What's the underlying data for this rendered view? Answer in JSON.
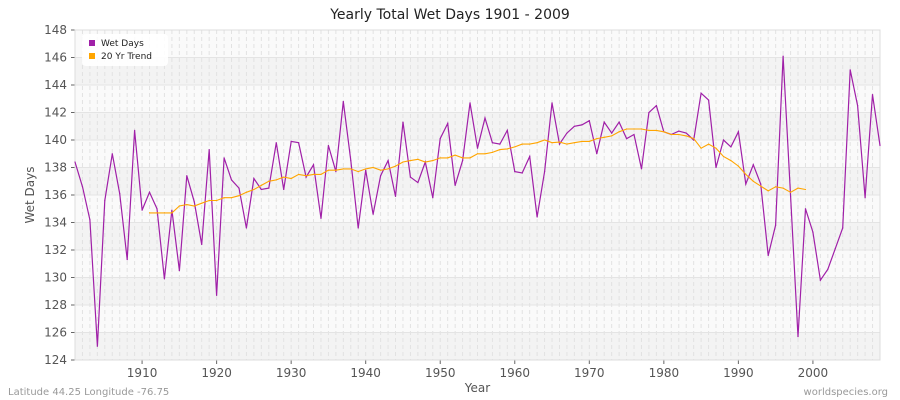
{
  "chart_data": {
    "type": "line",
    "title": "Yearly Total Wet Days 1901 - 2009",
    "xlabel": "Year",
    "ylabel": "Wet Days",
    "xlim": [
      1901,
      2009
    ],
    "ylim": [
      124,
      148
    ],
    "yticks": [
      124,
      126,
      128,
      130,
      132,
      134,
      136,
      138,
      140,
      142,
      144,
      146,
      148
    ],
    "xticks": [
      1910,
      1920,
      1930,
      1940,
      1950,
      1960,
      1970,
      1980,
      1990,
      2000
    ],
    "grid": true,
    "legend_position": "top-left",
    "series": [
      {
        "name": "Wet Days",
        "color": "#a020a8",
        "x_start": 1901,
        "values": [
          138.4,
          136.6,
          134.2,
          125.0,
          135.6,
          139.0,
          136.1,
          131.3,
          140.7,
          134.9,
          136.2,
          135.0,
          129.9,
          134.9,
          130.5,
          137.4,
          135.5,
          132.4,
          139.3,
          128.7,
          138.7,
          137.1,
          136.5,
          133.6,
          137.2,
          136.4,
          136.5,
          139.8,
          136.4,
          139.9,
          139.8,
          137.3,
          138.2,
          134.3,
          139.6,
          137.7,
          142.8,
          138.5,
          133.6,
          137.8,
          134.6,
          137.4,
          138.5,
          135.9,
          141.3,
          137.3,
          136.9,
          138.4,
          135.8,
          140.1,
          141.2,
          136.7,
          138.5,
          142.7,
          139.4,
          141.6,
          139.8,
          139.7,
          140.7,
          137.7,
          137.6,
          138.8,
          134.4,
          137.7,
          142.7,
          139.7,
          140.5,
          141.0,
          141.1,
          141.4,
          139.0,
          141.3,
          140.5,
          141.3,
          140.1,
          140.4,
          137.9,
          142.0,
          142.5,
          140.6,
          140.4,
          140.65,
          140.5,
          140.0,
          143.4,
          142.9,
          138.0,
          140.0,
          139.5,
          140.6,
          136.8,
          138.2,
          136.8,
          131.6,
          133.8,
          146.1,
          135.9,
          125.7,
          135.0,
          133.3,
          129.8,
          130.6,
          132.1,
          133.6,
          145.1,
          142.5,
          135.8,
          143.3,
          139.6
        ]
      },
      {
        "name": "20 Yr Trend",
        "color": "#ffa500",
        "x_start": 1911,
        "values": [
          134.7,
          134.7,
          134.7,
          134.7,
          135.2,
          135.3,
          135.2,
          135.4,
          135.6,
          135.6,
          135.8,
          135.8,
          135.95,
          136.2,
          136.4,
          136.7,
          137.0,
          137.1,
          137.3,
          137.2,
          137.5,
          137.4,
          137.5,
          137.5,
          137.8,
          137.8,
          137.9,
          137.9,
          137.7,
          137.9,
          138.0,
          137.8,
          137.9,
          138.1,
          138.4,
          138.5,
          138.6,
          138.4,
          138.5,
          138.7,
          138.7,
          138.9,
          138.7,
          138.7,
          139.0,
          139.0,
          139.1,
          139.3,
          139.35,
          139.5,
          139.7,
          139.7,
          139.8,
          140.0,
          139.8,
          139.85,
          139.7,
          139.8,
          139.9,
          139.9,
          140.1,
          140.2,
          140.3,
          140.6,
          140.8,
          140.8,
          140.8,
          140.7,
          140.7,
          140.6,
          140.4,
          140.4,
          140.3,
          140.1,
          139.4,
          139.7,
          139.4,
          138.8,
          138.5,
          138.1,
          137.5,
          137.0,
          136.65,
          136.3,
          136.6,
          136.5,
          136.2,
          136.5,
          136.4
        ]
      }
    ]
  },
  "footer": {
    "location": "Latitude 44.25 Longitude -76.75",
    "source": "worldspecies.org"
  }
}
